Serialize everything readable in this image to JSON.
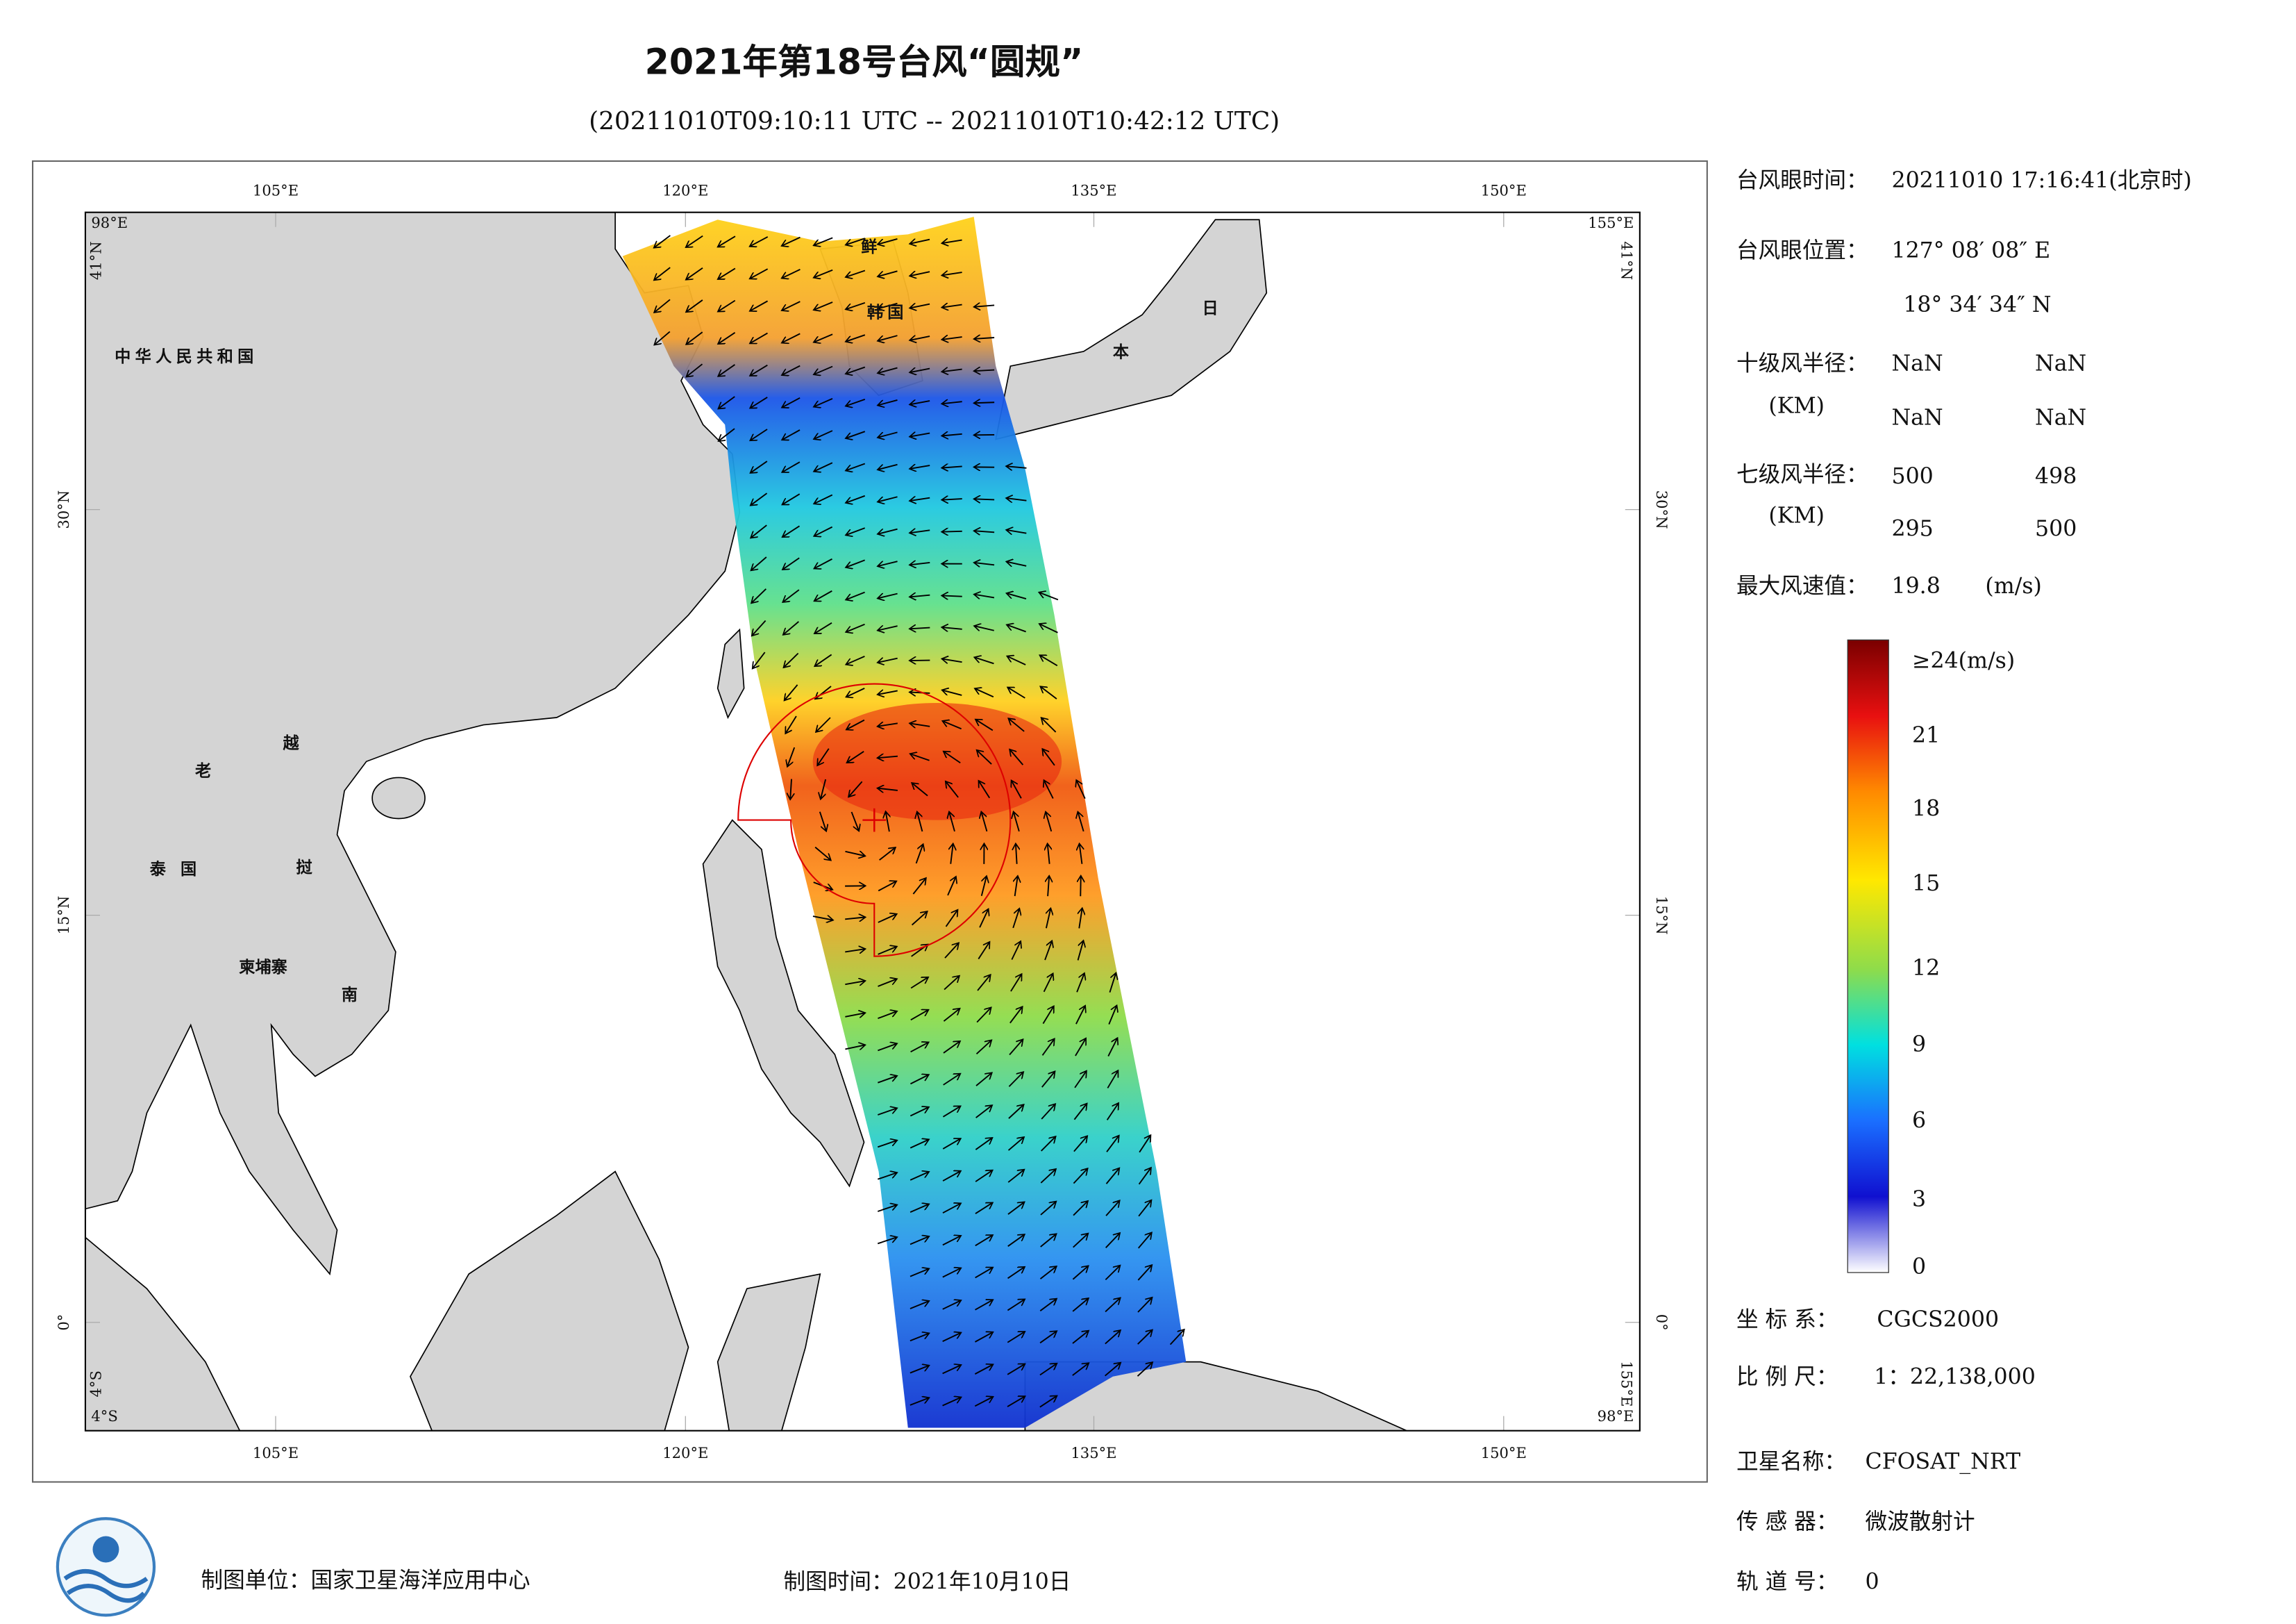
{
  "header": {
    "title": "2021年第18号台风“圆规”",
    "subtitle": "(20211010T09:10:11 UTC -- 20211010T10:42:12 UTC)"
  },
  "map": {
    "lon_labels": [
      "105°E",
      "120°E",
      "135°E",
      "150°E"
    ],
    "lat_labels": [
      "30°N",
      "15°N",
      "0°"
    ],
    "corner_labels": {
      "west": "98°E",
      "east": "155°E",
      "north": "41°N",
      "south": "4°S"
    },
    "place_labels": [
      "中华人民共和国",
      "老",
      "越",
      "泰国",
      "挝",
      "柬埔寨",
      "南",
      "鲜",
      "韩国",
      "日",
      "本"
    ]
  },
  "colorbar": {
    "labels": [
      "≥24(m/s)",
      "21",
      "18",
      "15",
      "12",
      "9",
      "6",
      "3",
      "0"
    ]
  },
  "info": {
    "eye_time_label": "台风眼时间：",
    "eye_time": "20211010 17:16:41(北京时)",
    "eye_pos_label": "台风眼位置：",
    "eye_lon": "127° 08′ 08″ E",
    "eye_lat": "18° 34′ 34″ N",
    "r10_label": "十级风半径：",
    "r10_unit": "(KM)",
    "r10_values": [
      "NaN",
      "NaN",
      "NaN",
      "NaN"
    ],
    "r7_label": "七级风半径：",
    "r7_unit": "(KM)",
    "r7_values": [
      500,
      498,
      295,
      500
    ],
    "max_wind_label": "最大风速值：",
    "max_wind": 19.8,
    "max_wind_unit": "(m/s)",
    "crs_label": "坐 标 系：",
    "crs": "CGCS2000",
    "scale_label": "比 例 尺：",
    "scale": "1：22,138,000",
    "satellite_label": "卫星名称：",
    "satellite": "CFOSAT_NRT",
    "sensor_label": "传 感 器：",
    "sensor": "微波散射计",
    "orbit_label": "轨 道 号：",
    "orbit": 0
  },
  "footer": {
    "producer": "制图单位：国家卫星海洋应用中心",
    "date": "制图时间：2021年10月10日"
  }
}
